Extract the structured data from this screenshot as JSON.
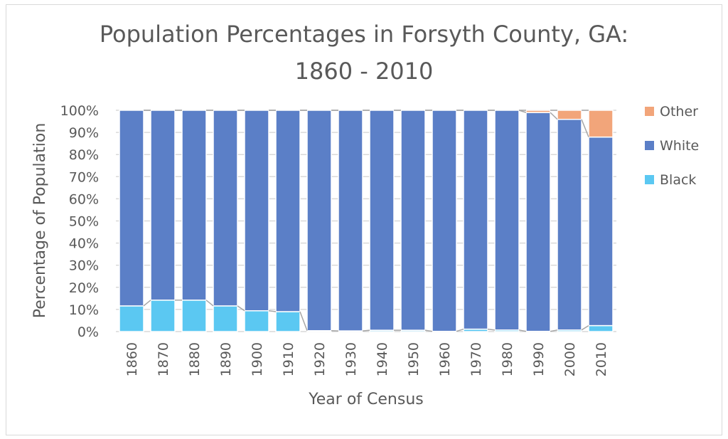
{
  "chart_data": {
    "type": "bar",
    "stacked": true,
    "title": "Population Percentages in Forsyth County, GA: 1860 - 2010",
    "title_lines": [
      "Population Percentages in Forsyth County, GA:",
      "1860 - 2010"
    ],
    "xlabel": "Year of Census",
    "ylabel": "Percentage of Population",
    "ylim": [
      0,
      100
    ],
    "yticks": [
      "0%",
      "10%",
      "20%",
      "30%",
      "40%",
      "50%",
      "60%",
      "70%",
      "80%",
      "90%",
      "100%"
    ],
    "grid": true,
    "legend": "right",
    "series_lines": true,
    "categories": [
      "1860",
      "1870",
      "1880",
      "1890",
      "1900",
      "1910",
      "1920",
      "1930",
      "1940",
      "1950",
      "1960",
      "1970",
      "1980",
      "1990",
      "2000",
      "2010"
    ],
    "series": [
      {
        "name": "Black",
        "color": "#5bc8f2",
        "values": [
          11.6,
          14.2,
          14.2,
          11.6,
          9.4,
          9.0,
          0.4,
          0.3,
          0.6,
          0.6,
          0.1,
          1.1,
          0.7,
          0.1,
          0.7,
          2.7
        ]
      },
      {
        "name": "White",
        "color": "#5b7fc7",
        "values": [
          88.4,
          85.8,
          85.8,
          88.4,
          90.6,
          91.0,
          99.6,
          99.7,
          99.4,
          99.4,
          99.9,
          98.9,
          99.3,
          98.9,
          95.2,
          85.2
        ]
      },
      {
        "name": "Other",
        "color": "#f2a57a",
        "values": [
          0,
          0,
          0,
          0,
          0,
          0,
          0,
          0,
          0,
          0,
          0,
          0,
          0,
          1.0,
          4.1,
          12.1
        ]
      }
    ]
  }
}
